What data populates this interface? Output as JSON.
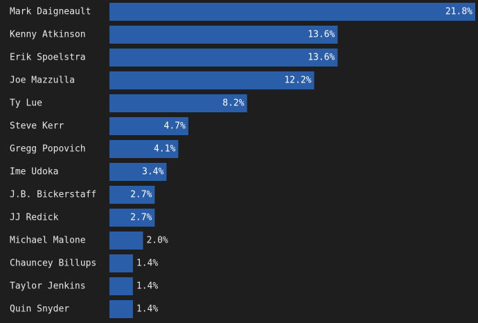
{
  "chart_data": {
    "type": "bar",
    "orientation": "horizontal",
    "categories": [
      "Mark Daigneault",
      "Kenny Atkinson",
      "Erik Spoelstra",
      "Joe Mazzulla",
      "Ty Lue",
      "Steve Kerr",
      "Gregg Popovich",
      "Ime Udoka",
      "J.B. Bickerstaff",
      "JJ Redick",
      "Michael Malone",
      "Chauncey Billups",
      "Taylor Jenkins",
      "Quin Snyder"
    ],
    "values": [
      21.8,
      13.6,
      13.6,
      12.2,
      8.2,
      4.7,
      4.1,
      3.4,
      2.7,
      2.7,
      2.0,
      1.4,
      1.4,
      1.4
    ],
    "value_labels": [
      "21.8%",
      "13.6%",
      "13.6%",
      "12.2%",
      "8.2%",
      "4.7%",
      "4.1%",
      "3.4%",
      "2.7%",
      "2.7%",
      "2.0%",
      "1.4%",
      "1.4%",
      "1.4%"
    ],
    "title": "",
    "xlabel": "",
    "ylabel": "",
    "xlim": [
      0,
      21.8
    ],
    "grid": false,
    "legend": "none"
  },
  "colors": {
    "background": "#1e1e1e",
    "bar": "#2a5ea8",
    "label_text": "#e8e8e8",
    "value_text": "#ffffff"
  }
}
